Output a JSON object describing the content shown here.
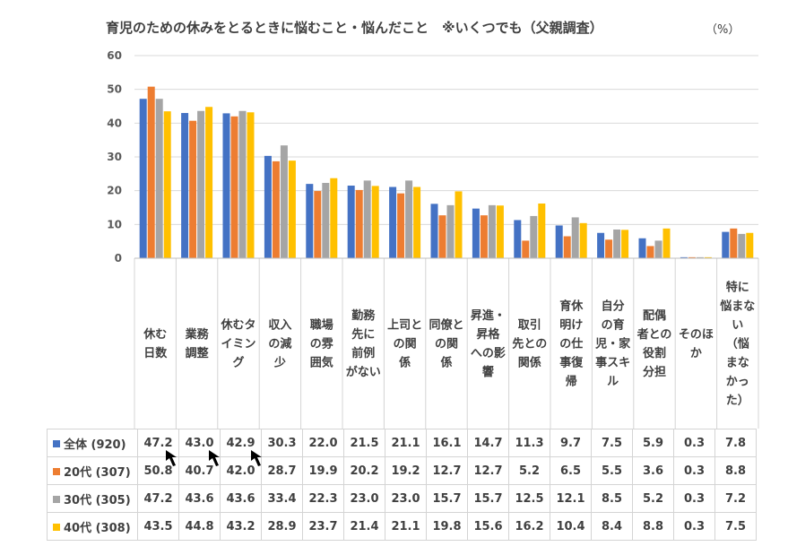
{
  "title": "育児のための休みをとるときに悩むこと・悩んだこと　※いくつでも（父親調査）",
  "unit": "（%）",
  "chart_data": {
    "type": "bar",
    "ylim": [
      0,
      60
    ],
    "yticks": [
      "0",
      "10",
      "20",
      "30",
      "40",
      "50",
      "60"
    ],
    "grid": true,
    "legend": "table-left",
    "categories": [
      [
        "休む",
        "日数"
      ],
      [
        "業務",
        "調整"
      ],
      [
        "休むタ",
        "イミン",
        "グ"
      ],
      [
        "収入",
        "の減",
        "少"
      ],
      [
        "職場",
        "の雰",
        "囲気"
      ],
      [
        "勤務",
        "先に",
        "前例",
        "がない"
      ],
      [
        "上司と",
        "の関",
        "係"
      ],
      [
        "同僚と",
        "の関",
        "係"
      ],
      [
        "昇進・",
        "昇格",
        "への影",
        "響"
      ],
      [
        "取引",
        "先との",
        "関係"
      ],
      [
        "育休",
        "明け",
        "の仕",
        "事復",
        "帰"
      ],
      [
        "自分",
        "の育",
        "児・家",
        "事スキ",
        "ル"
      ],
      [
        "配偶",
        "者との",
        "役割",
        "分担"
      ],
      [
        "そのほ",
        "か"
      ],
      [
        "特に",
        "悩まな",
        "い",
        "（悩",
        "まな",
        "かっ",
        "た）"
      ]
    ],
    "series": [
      {
        "name": "全体 (920)",
        "color": "#4472c4",
        "values": [
          47.2,
          43.0,
          42.9,
          30.3,
          22.0,
          21.5,
          21.1,
          16.1,
          14.7,
          11.3,
          9.7,
          7.5,
          5.9,
          0.3,
          7.8
        ],
        "labels": [
          "47.2",
          "43.0",
          "42.9",
          "30.3",
          "22.0",
          "21.5",
          "21.1",
          "16.1",
          "14.7",
          "11.3",
          "9.7",
          "7.5",
          "5.9",
          "0.3",
          "7.8"
        ]
      },
      {
        "name": "20代 (307)",
        "color": "#ed7d31",
        "values": [
          50.8,
          40.7,
          42.0,
          28.7,
          19.9,
          20.2,
          19.2,
          12.7,
          12.7,
          5.2,
          6.5,
          5.5,
          3.6,
          0.3,
          8.8
        ],
        "labels": [
          "50.8",
          "40.7",
          "42.0",
          "28.7",
          "19.9",
          "20.2",
          "19.2",
          "12.7",
          "12.7",
          "5.2",
          "6.5",
          "5.5",
          "3.6",
          "0.3",
          "8.8"
        ]
      },
      {
        "name": "30代 (305)",
        "color": "#a5a5a5",
        "values": [
          47.2,
          43.6,
          43.6,
          33.4,
          22.3,
          23.0,
          23.0,
          15.7,
          15.7,
          12.5,
          12.1,
          8.5,
          5.2,
          0.3,
          7.2
        ],
        "labels": [
          "47.2",
          "43.6",
          "43.6",
          "33.4",
          "22.3",
          "23.0",
          "23.0",
          "15.7",
          "15.7",
          "12.5",
          "12.1",
          "8.5",
          "5.2",
          "0.3",
          "7.2"
        ]
      },
      {
        "name": "40代 (308)",
        "color": "#ffc000",
        "values": [
          43.5,
          44.8,
          43.2,
          28.9,
          23.7,
          21.4,
          21.1,
          19.8,
          15.6,
          16.2,
          10.4,
          8.4,
          8.8,
          0.3,
          7.5
        ],
        "labels": [
          "43.5",
          "44.8",
          "43.2",
          "28.9",
          "23.7",
          "21.4",
          "21.1",
          "19.8",
          "15.6",
          "16.2",
          "10.4",
          "8.4",
          "8.8",
          "0.3",
          "7.5"
        ]
      }
    ]
  },
  "annotations": {
    "arrow_icon": "cursor-arrow-icon"
  }
}
